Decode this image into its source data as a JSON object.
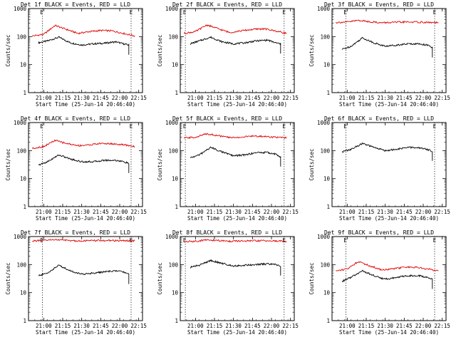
{
  "chart_data": [
    {
      "type": "line",
      "title": "Det 1f BLACK = Events, RED = LLD",
      "xlabel": "Start Time (25-Jun-14 20:46:40)",
      "ylabel": "Counts/sec",
      "x": [
        "21:00",
        "21:15",
        "21:30",
        "21:45",
        "22:00",
        "22:15"
      ],
      "scale": "log",
      "ylim": [
        1,
        1000
      ],
      "yticks": [
        "1",
        "10",
        "100",
        "1000"
      ],
      "marker": "E",
      "dotted_times": [
        "20:59",
        "22:09"
      ],
      "series": [
        {
          "color": "#000000",
          "x": [
            20.93,
            21.05,
            21.2,
            21.35,
            21.5,
            21.65,
            21.8,
            21.95,
            22.05,
            22.12
          ],
          "y": [
            60,
            70,
            95,
            60,
            50,
            55,
            58,
            65,
            55,
            50
          ]
        },
        {
          "color": "#e00000",
          "x": [
            20.85,
            21.0,
            21.15,
            21.3,
            21.45,
            21.6,
            21.75,
            21.9,
            22.05,
            22.2
          ],
          "y": [
            105,
            120,
            250,
            180,
            130,
            150,
            165,
            160,
            130,
            105
          ]
        }
      ]
    },
    {
      "type": "line",
      "title": "Det 2f BLACK = Events, RED = LLD",
      "xlabel": "Start Time (25-Jun-14 20:46:40)",
      "ylabel": "Counts/sec",
      "x": [
        "21:00",
        "21:15",
        "21:30",
        "21:45",
        "22:00",
        "22:15"
      ],
      "scale": "log",
      "ylim": [
        1,
        1000
      ],
      "yticks": [
        "1",
        "10",
        "100",
        "1000"
      ],
      "marker": "E",
      "dotted_times": [
        "20:52",
        "22:10"
      ],
      "series": [
        {
          "color": "#000000",
          "x": [
            20.93,
            21.05,
            21.2,
            21.35,
            21.5,
            21.65,
            21.8,
            21.95,
            22.05,
            22.12
          ],
          "y": [
            55,
            70,
            95,
            65,
            55,
            60,
            70,
            75,
            60,
            55
          ]
        },
        {
          "color": "#e00000",
          "x": [
            20.85,
            21.0,
            21.15,
            21.3,
            21.45,
            21.6,
            21.75,
            21.9,
            22.05,
            22.2
          ],
          "y": [
            130,
            150,
            260,
            190,
            140,
            160,
            180,
            190,
            160,
            130
          ]
        }
      ]
    },
    {
      "type": "line",
      "title": "Det 3f BLACK = Events, RED = LLD",
      "xlabel": "Start Time (25-Jun-14 20:46:40)",
      "ylabel": "Counts/sec",
      "x": [
        "21:00",
        "21:15",
        "21:30",
        "21:45",
        "22:00",
        "22:15"
      ],
      "scale": "log",
      "ylim": [
        1,
        1000
      ],
      "yticks": [
        "1",
        "10",
        "100",
        "1000"
      ],
      "marker": "E",
      "dotted_times": [
        "20:59",
        "22:09"
      ],
      "series": [
        {
          "color": "#000000",
          "x": [
            20.93,
            21.05,
            21.2,
            21.35,
            21.5,
            21.65,
            21.8,
            21.95,
            22.05,
            22.12
          ],
          "y": [
            35,
            45,
            90,
            60,
            45,
            50,
            55,
            55,
            50,
            40
          ]
        },
        {
          "color": "#e00000",
          "x": [
            20.85,
            21.0,
            21.15,
            21.3,
            21.45,
            21.6,
            21.75,
            21.9,
            22.05,
            22.2
          ],
          "y": [
            320,
            330,
            380,
            340,
            310,
            320,
            330,
            330,
            320,
            310
          ]
        }
      ]
    },
    {
      "type": "line",
      "title": "Det 4f BLACK = Events, RED = LLD",
      "xlabel": "Start Time (25-Jun-14 20:46:40)",
      "ylabel": "Counts/sec",
      "x": [
        "21:00",
        "21:15",
        "21:30",
        "21:45",
        "22:00",
        "22:15"
      ],
      "scale": "log",
      "ylim": [
        1,
        1000
      ],
      "yticks": [
        "1",
        "10",
        "100",
        "1000"
      ],
      "marker": "E",
      "dotted_times": [
        "20:59",
        "22:09"
      ],
      "series": [
        {
          "color": "#000000",
          "x": [
            20.93,
            21.05,
            21.2,
            21.35,
            21.5,
            21.65,
            21.8,
            21.95,
            22.05,
            22.12
          ],
          "y": [
            30,
            40,
            70,
            50,
            40,
            40,
            45,
            45,
            40,
            35
          ]
        },
        {
          "color": "#e00000",
          "x": [
            20.85,
            21.0,
            21.15,
            21.3,
            21.45,
            21.6,
            21.75,
            21.9,
            22.05,
            22.2
          ],
          "y": [
            120,
            140,
            230,
            180,
            150,
            160,
            180,
            175,
            160,
            140
          ]
        }
      ]
    },
    {
      "type": "line",
      "title": "Det 5f BLACK = Events, RED = LLD",
      "xlabel": "Start Time (25-Jun-14 20:46:40)",
      "ylabel": "Counts/sec",
      "x": [
        "21:00",
        "21:15",
        "21:30",
        "21:45",
        "22:00",
        "22:15"
      ],
      "scale": "log",
      "ylim": [
        1,
        1000
      ],
      "yticks": [
        "1",
        "10",
        "100",
        "1000"
      ],
      "marker": "E",
      "dotted_times": [
        "20:52",
        "22:10"
      ],
      "series": [
        {
          "color": "#000000",
          "x": [
            20.93,
            21.05,
            21.2,
            21.35,
            21.5,
            21.65,
            21.8,
            21.95,
            22.05,
            22.12
          ],
          "y": [
            55,
            70,
            130,
            90,
            65,
            70,
            85,
            85,
            75,
            60
          ]
        },
        {
          "color": "#e00000",
          "x": [
            20.85,
            21.0,
            21.15,
            21.3,
            21.45,
            21.6,
            21.75,
            21.9,
            22.05,
            22.2
          ],
          "y": [
            280,
            300,
            400,
            340,
            290,
            300,
            330,
            320,
            300,
            280
          ]
        }
      ]
    },
    {
      "type": "line",
      "title": "Det 6f BLACK = Events, RED = LLD",
      "xlabel": "Start Time (25-Jun-14 20:46:40)",
      "ylabel": "Counts/sec",
      "x": [
        "21:00",
        "21:15",
        "21:30",
        "21:45",
        "22:00",
        "22:15"
      ],
      "scale": "log",
      "ylim": [
        1,
        1000
      ],
      "yticks": [
        "1",
        "10",
        "100",
        "1000"
      ],
      "marker": "E",
      "dotted_times": [
        "20:59",
        "22:09"
      ],
      "series": [
        {
          "color": "#000000",
          "x": [
            20.93,
            21.05,
            21.2,
            21.35,
            21.5,
            21.65,
            21.8,
            21.95,
            22.05,
            22.12
          ],
          "y": [
            90,
            110,
            180,
            130,
            100,
            110,
            130,
            125,
            110,
            95
          ]
        }
      ]
    },
    {
      "type": "line",
      "title": "Det 7f BLACK = Events, RED = LLD",
      "xlabel": "Start Time (25-Jun-14 20:46:40)",
      "ylabel": "Counts/sec",
      "x": [
        "21:00",
        "21:15",
        "21:30",
        "21:45",
        "22:00",
        "22:15"
      ],
      "scale": "log",
      "ylim": [
        1,
        1000
      ],
      "yticks": [
        "1",
        "10",
        "100",
        "1000"
      ],
      "marker": "E",
      "dotted_times": [
        "20:59",
        "22:09"
      ],
      "series": [
        {
          "color": "#000000",
          "x": [
            20.93,
            21.05,
            21.2,
            21.35,
            21.5,
            21.65,
            21.8,
            21.95,
            22.05,
            22.12
          ],
          "y": [
            40,
            50,
            95,
            60,
            45,
            50,
            55,
            60,
            55,
            45
          ]
        },
        {
          "color": "#e00000",
          "x": [
            20.85,
            21.0,
            21.15,
            21.3,
            21.45,
            21.6,
            21.75,
            21.9,
            22.05,
            22.2
          ],
          "y": [
            700,
            720,
            780,
            730,
            700,
            710,
            720,
            720,
            710,
            700
          ]
        }
      ]
    },
    {
      "type": "line",
      "title": "Det 8f BLACK = Events, RED = LLD",
      "xlabel": "Start Time (25-Jun-14 20:46:40)",
      "ylabel": "Counts/sec",
      "x": [
        "21:00",
        "21:15",
        "21:30",
        "21:45",
        "22:00",
        "22:15"
      ],
      "scale": "log",
      "ylim": [
        1,
        1000
      ],
      "yticks": [
        "1",
        "10",
        "100",
        "1000"
      ],
      "marker": "E",
      "dotted_times": [
        "20:52",
        "22:10"
      ],
      "series": [
        {
          "color": "#000000",
          "x": [
            20.93,
            21.05,
            21.2,
            21.35,
            21.5,
            21.65,
            21.8,
            21.95,
            22.05,
            22.12
          ],
          "y": [
            80,
            95,
            140,
            110,
            90,
            95,
            100,
            105,
            100,
            90
          ]
        },
        {
          "color": "#e00000",
          "x": [
            20.85,
            21.0,
            21.15,
            21.3,
            21.45,
            21.6,
            21.75,
            21.9,
            22.05,
            22.2
          ],
          "y": [
            650,
            680,
            760,
            720,
            680,
            690,
            700,
            710,
            690,
            680
          ]
        }
      ]
    },
    {
      "type": "line",
      "title": "Det 9f BLACK = Events, RED = LLD",
      "xlabel": "Start Time (25-Jun-14 20:46:40)",
      "ylabel": "Counts/sec",
      "x": [
        "21:00",
        "21:15",
        "21:30",
        "21:45",
        "22:00",
        "22:15"
      ],
      "scale": "log",
      "ylim": [
        1,
        1000
      ],
      "yticks": [
        "1",
        "10",
        "100",
        "1000"
      ],
      "marker": "E",
      "dotted_times": [
        "20:59",
        "22:09"
      ],
      "series": [
        {
          "color": "#000000",
          "x": [
            20.93,
            21.05,
            21.2,
            21.35,
            21.5,
            21.65,
            21.8,
            21.95,
            22.05,
            22.12
          ],
          "y": [
            25,
            35,
            60,
            40,
            30,
            35,
            40,
            40,
            35,
            30
          ]
        },
        {
          "color": "#e00000",
          "x": [
            20.85,
            21.0,
            21.15,
            21.3,
            21.45,
            21.6,
            21.75,
            21.9,
            22.05,
            22.2
          ],
          "y": [
            60,
            70,
            130,
            90,
            65,
            70,
            80,
            80,
            70,
            60
          ]
        }
      ]
    }
  ]
}
